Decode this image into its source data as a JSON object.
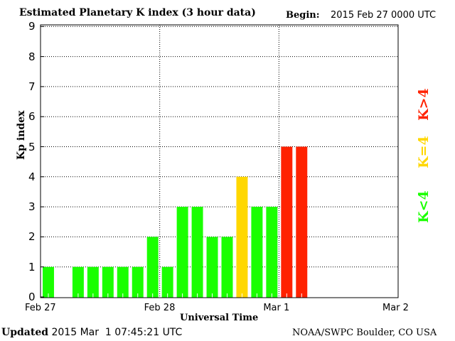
{
  "chart_data": {
    "type": "bar",
    "title": "Estimated Planetary K index (3 hour data)",
    "begin_label": "Begin:",
    "begin_value": "2015 Feb 27 0000 UTC",
    "xlabel": "Universal Time",
    "ylabel": "Kp index",
    "ylim": [
      0,
      9
    ],
    "yticks": [
      "0",
      "1",
      "2",
      "3",
      "4",
      "5",
      "6",
      "7",
      "8",
      "9"
    ],
    "xticks": [
      "Feb 27",
      "Feb 28",
      "Mar 1",
      "Mar 2"
    ],
    "grid": true,
    "interval_hours": 3,
    "values": [
      1,
      0,
      1,
      1,
      1,
      1,
      1,
      2,
      1,
      3,
      3,
      2,
      2,
      4,
      3,
      3,
      5,
      5
    ],
    "colors": {
      "below": "#1aff00",
      "equal": "#ffd700",
      "above": "#ff2200"
    },
    "legend": {
      "above": "K>4",
      "equal": "K=4",
      "below": "K<4"
    }
  },
  "footer": {
    "updated_label": "Updated",
    "updated_value": "2015 Mar  1 07:45:21 UTC",
    "source": "NOAA/SWPC Boulder, CO USA"
  }
}
